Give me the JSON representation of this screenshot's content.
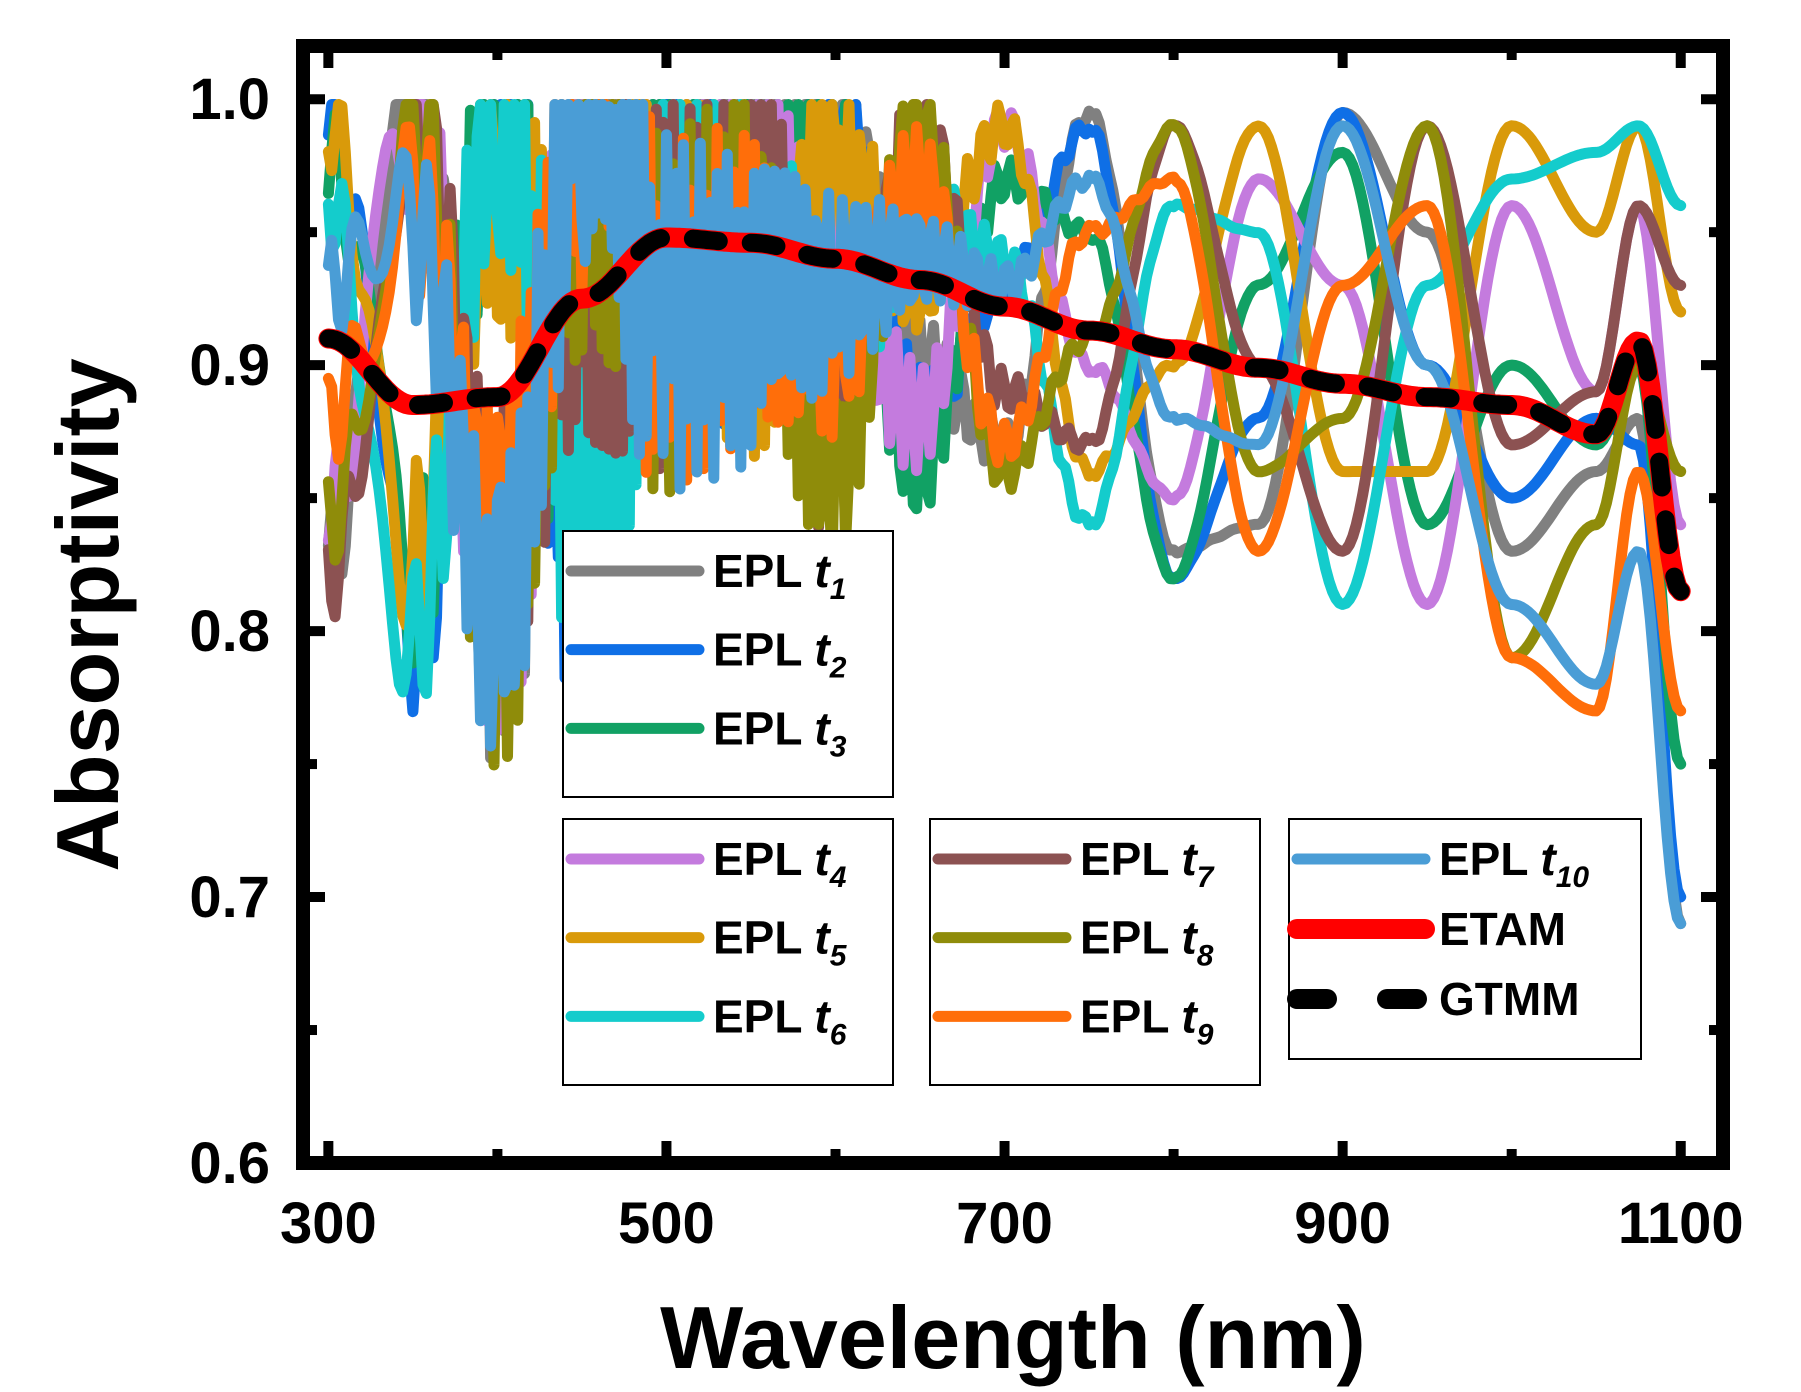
{
  "chart_data": {
    "type": "line",
    "title": "",
    "xlabel": "Wavelength (nm)",
    "ylabel": "Absorptivity",
    "xlim": [
      285,
      1125
    ],
    "ylim": [
      0.6,
      1.02
    ],
    "xticks": [
      300,
      500,
      700,
      900,
      1100
    ],
    "xtick_labels": [
      "300",
      "500",
      "700",
      "900",
      "1100"
    ],
    "yticks": [
      0.6,
      0.7,
      0.8,
      0.9,
      1.0
    ],
    "ytick_labels": [
      "0.6",
      "0.7",
      "0.8",
      "0.9",
      "1.0"
    ],
    "grid": false,
    "x": [
      300,
      350,
      400,
      450,
      500,
      550,
      600,
      650,
      700,
      750,
      800,
      850,
      900,
      950,
      1000,
      1050,
      1075,
      1100
    ],
    "series": [
      {
        "name": "EPL t1",
        "prefix": "EPL ",
        "var": "t",
        "sub": "1",
        "color": "#808080",
        "k": 0,
        "values": [
          0.83,
          0.995,
          0.8,
          0.98,
          0.93,
          0.97,
          0.995,
          0.9,
          0.87,
          0.995,
          0.83,
          0.84,
          0.995,
          0.95,
          0.83,
          0.86,
          0.88,
          0.69
        ]
      },
      {
        "name": "EPL t2",
        "prefix": "EPL ",
        "var": "t",
        "sub": "2",
        "color": "#0F6FE6",
        "k": 1,
        "values": [
          0.995,
          0.8,
          0.985,
          0.83,
          0.97,
          0.93,
          0.99,
          0.88,
          0.93,
          0.99,
          0.82,
          0.88,
          0.995,
          0.9,
          0.85,
          0.88,
          0.87,
          0.7
        ]
      },
      {
        "name": "EPL t3",
        "prefix": "EPL ",
        "var": "t",
        "sub": "3",
        "color": "#11A164",
        "k": 2,
        "values": [
          0.98,
          0.82,
          0.99,
          0.86,
          0.95,
          0.95,
          0.97,
          0.86,
          0.97,
          0.95,
          0.82,
          0.93,
          0.98,
          0.84,
          0.9,
          0.87,
          0.9,
          0.75
        ]
      },
      {
        "name": "EPL t4",
        "prefix": "EPL ",
        "var": "t",
        "sub": "4",
        "color": "#C47BDE",
        "k": 3,
        "values": [
          0.85,
          0.99,
          0.81,
          0.96,
          0.93,
          0.96,
          0.93,
          0.88,
          0.99,
          0.9,
          0.85,
          0.97,
          0.93,
          0.81,
          0.96,
          0.89,
          0.96,
          0.84
        ]
      },
      {
        "name": "EPL t5",
        "prefix": "EPL ",
        "var": "t",
        "sub": "5",
        "color": "#D99A0A",
        "k": 4,
        "values": [
          0.99,
          0.83,
          0.97,
          0.9,
          0.97,
          0.92,
          0.97,
          0.93,
          0.99,
          0.86,
          0.9,
          0.99,
          0.86,
          0.86,
          0.99,
          0.95,
          0.99,
          0.92
        ]
      },
      {
        "name": "EPL t6",
        "prefix": "EPL ",
        "var": "t",
        "sub": "6",
        "color": "#14CCCC",
        "k": 5,
        "values": [
          0.96,
          0.8,
          0.99,
          0.85,
          0.95,
          0.96,
          0.9,
          0.96,
          0.94,
          0.84,
          0.96,
          0.95,
          0.81,
          0.93,
          0.97,
          0.98,
          0.99,
          0.96
        ]
      },
      {
        "name": "EPL t7",
        "prefix": "EPL ",
        "var": "t",
        "sub": "7",
        "color": "#8C5252",
        "k": 6,
        "values": [
          0.82,
          0.995,
          0.83,
          0.94,
          0.93,
          0.97,
          0.87,
          0.99,
          0.89,
          0.87,
          0.99,
          0.9,
          0.83,
          0.99,
          0.87,
          0.89,
          0.96,
          0.93
        ]
      },
      {
        "name": "EPL t8",
        "prefix": "EPL ",
        "var": "t",
        "sub": "8",
        "color": "#8F8C0A",
        "k": 7,
        "values": [
          0.84,
          0.99,
          0.8,
          0.97,
          0.92,
          0.95,
          0.86,
          0.99,
          0.86,
          0.91,
          0.99,
          0.86,
          0.88,
          0.99,
          0.79,
          0.84,
          0.9,
          0.86
        ]
      },
      {
        "name": "EPL t9",
        "prefix": "EPL ",
        "var": "t",
        "sub": "9",
        "color": "#FF6E0A",
        "k": 8,
        "values": [
          0.88,
          0.96,
          0.83,
          0.99,
          0.92,
          0.93,
          0.91,
          0.97,
          0.87,
          0.95,
          0.97,
          0.83,
          0.93,
          0.96,
          0.79,
          0.77,
          0.86,
          0.77
        ]
      },
      {
        "name": "EPL t10",
        "prefix": "EPL ",
        "var": "t",
        "sub": "10",
        "color": "#4A9DD6",
        "k": 9,
        "values": [
          0.93,
          0.95,
          0.8,
          0.99,
          0.92,
          0.92,
          0.93,
          0.94,
          0.93,
          0.97,
          0.88,
          0.87,
          0.99,
          0.9,
          0.81,
          0.78,
          0.83,
          0.69
        ]
      },
      {
        "name": "ETAM",
        "prefix": "ETAM",
        "var": "",
        "sub": "",
        "color": "#FF0000",
        "values": [
          0.91,
          0.885,
          0.888,
          0.925,
          0.948,
          0.946,
          0.94,
          0.932,
          0.922,
          0.913,
          0.906,
          0.899,
          0.893,
          0.888,
          0.885,
          0.874,
          0.909,
          0.815
        ]
      },
      {
        "name": "GTMM",
        "prefix": "GTMM",
        "var": "",
        "sub": "",
        "color": "#000000",
        "dashed": true,
        "values": [
          0.91,
          0.885,
          0.888,
          0.925,
          0.948,
          0.946,
          0.94,
          0.932,
          0.922,
          0.913,
          0.906,
          0.899,
          0.893,
          0.888,
          0.885,
          0.874,
          0.909,
          0.815
        ]
      }
    ]
  }
}
